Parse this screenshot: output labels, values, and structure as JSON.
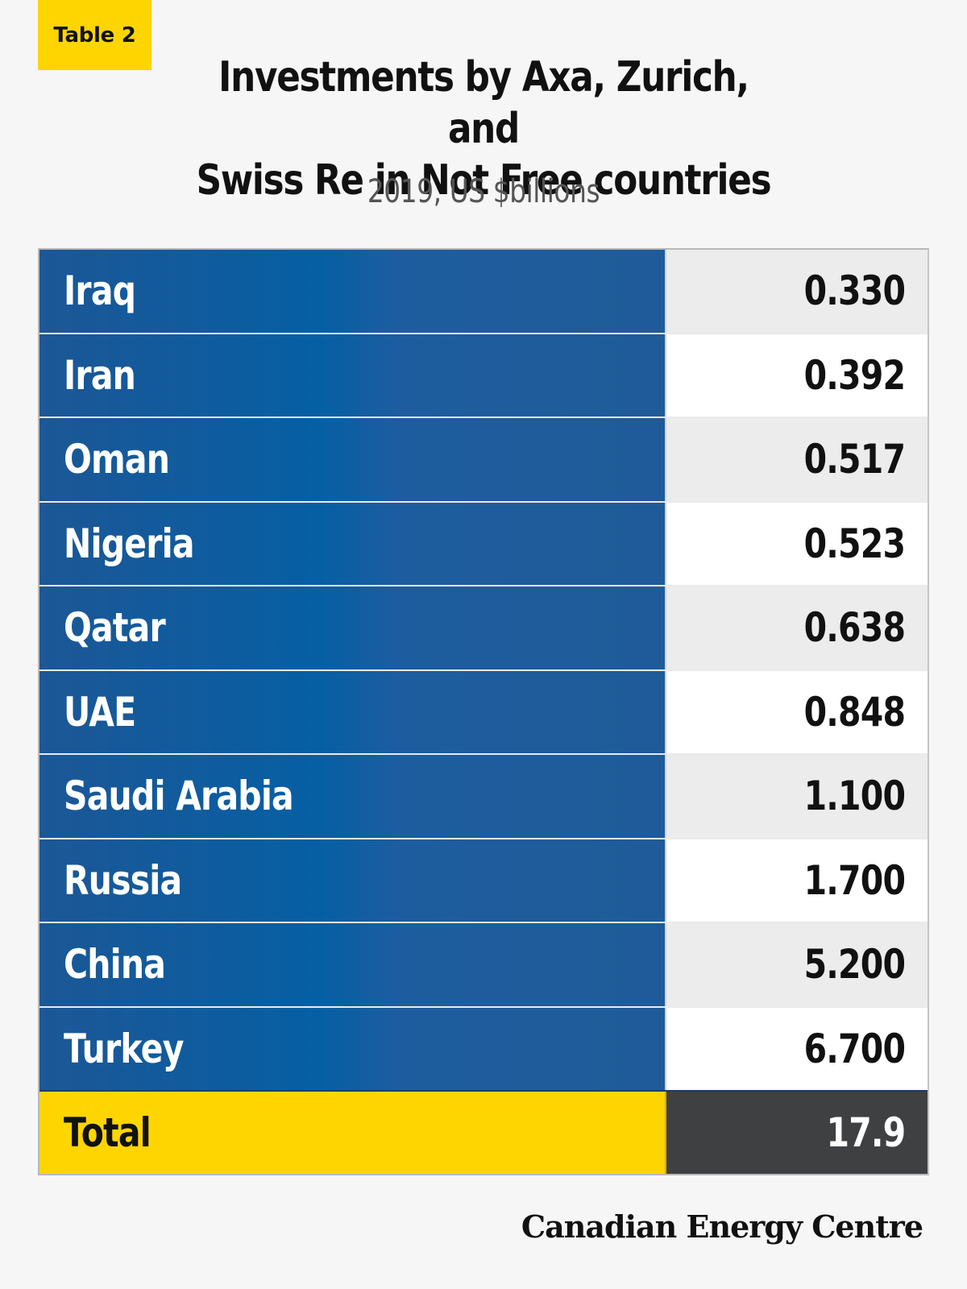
{
  "tag": "Table 2",
  "title_line1": "Investments by Axa, Zurich, and",
  "title_line2": "Swiss Re in Not Free countries",
  "subtitle": "2019, US $billions",
  "rows": [
    {
      "country": "Iraq",
      "value": "0.330"
    },
    {
      "country": "Iran",
      "value": "0.392"
    },
    {
      "country": "Oman",
      "value": "0.517"
    },
    {
      "country": "Nigeria",
      "value": "0.523"
    },
    {
      "country": "Qatar",
      "value": "0.638"
    },
    {
      "country": "UAE",
      "value": "0.848"
    },
    {
      "country": "Saudi Arabia",
      "value": "1.100"
    },
    {
      "country": "Russia",
      "value": "1.700"
    },
    {
      "country": "China",
      "value": "5.200"
    },
    {
      "country": "Turkey",
      "value": "6.700"
    }
  ],
  "total": {
    "label": "Total",
    "value": "17.9"
  },
  "footer": "Canadian Energy Centre",
  "colors": {
    "accent_yellow": "#ffd500",
    "row_blue": "#1f5b99",
    "total_dark": "#3f4042"
  }
}
